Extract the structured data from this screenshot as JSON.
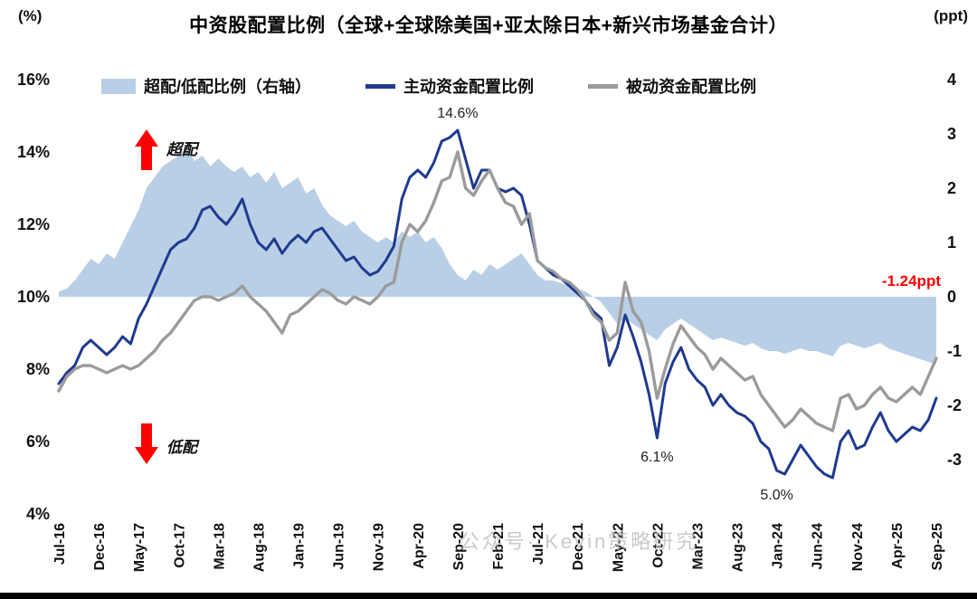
{
  "title": "中资股配置比例（全球+全球除美国+亚太除日本+新兴市场基金合计）",
  "left_axis_unit": "(%)",
  "right_axis_unit": "(ppt)",
  "watermark": "公众号· Kevin策略研究",
  "colors": {
    "red": "#fe0000",
    "area_blue": "#b9cfe6",
    "line_blue": "#1f3a8f",
    "line_gray": "#9b9b9b"
  },
  "legend": [
    {
      "label": "超配/低配比例（右轴）",
      "type": "area",
      "color": "#b9cfe6"
    },
    {
      "label": "主动资金配置比例",
      "type": "line",
      "color": "#1f3a8f"
    },
    {
      "label": "被动资金配置比例",
      "type": "line",
      "color": "#9b9b9b"
    }
  ],
  "annotations": {
    "peak": "14.6%",
    "trough1": "6.1%",
    "trough2": "5.0%",
    "latest": "-1.24ppt",
    "overweight": "超配",
    "underweight": "低配"
  },
  "chart_data": {
    "type": "line+area",
    "n_points": 111,
    "tick_every": 5,
    "x_tick_labels": [
      "Jul-16",
      "Dec-16",
      "May-17",
      "Oct-17",
      "Mar-18",
      "Aug-18",
      "Jan-19",
      "Jun-19",
      "Nov-19",
      "Apr-20",
      "Sep-20",
      "Feb-21",
      "Jul-21",
      "Dec-21",
      "May-22",
      "Oct-22",
      "Mar-23",
      "Aug-23",
      "Jan-24",
      "Jun-24",
      "Nov-24",
      "Apr-25",
      "Sep-25"
    ],
    "left_axis": {
      "min": 4,
      "max": 16,
      "tick_values": [
        16,
        14,
        12,
        10,
        8,
        6,
        4
      ],
      "ticks": [
        "16%",
        "14%",
        "12%",
        "10%",
        "8%",
        "6%",
        "4%"
      ]
    },
    "right_axis": {
      "min": -4,
      "max": 4,
      "tick_values": [
        4,
        3,
        2,
        1,
        0,
        -1,
        -2,
        -3
      ],
      "ticks": [
        "4",
        "3",
        "2",
        "1",
        "0",
        "-1",
        "-2",
        "-3"
      ]
    },
    "series": [
      {
        "name": "超配/低配比例（右轴）",
        "axis": "right",
        "type": "area",
        "color": "#b9cfe6",
        "values": [
          0.1,
          0.15,
          0.3,
          0.5,
          0.7,
          0.6,
          0.8,
          0.7,
          1.0,
          1.3,
          1.6,
          2.0,
          2.2,
          2.4,
          2.5,
          2.6,
          2.75,
          2.5,
          2.6,
          2.4,
          2.55,
          2.4,
          2.3,
          2.4,
          2.2,
          2.3,
          2.1,
          2.3,
          2.0,
          2.1,
          2.2,
          1.9,
          2.0,
          1.7,
          1.5,
          1.4,
          1.3,
          1.4,
          1.2,
          1.1,
          1.0,
          1.1,
          1.0,
          1.2,
          1.1,
          1.2,
          1.0,
          1.1,
          0.9,
          0.6,
          0.4,
          0.3,
          0.5,
          0.4,
          0.6,
          0.5,
          0.6,
          0.7,
          0.8,
          0.6,
          0.4,
          0.3,
          0.3,
          0.25,
          0.2,
          0.15,
          0.1,
          0.0,
          -0.1,
          -0.3,
          -0.5,
          -0.4,
          -0.5,
          -0.6,
          -0.7,
          -0.8,
          -0.6,
          -0.5,
          -0.4,
          -0.5,
          -0.6,
          -0.7,
          -0.8,
          -0.75,
          -0.8,
          -0.85,
          -0.9,
          -0.85,
          -0.95,
          -1.0,
          -1.0,
          -1.05,
          -1.0,
          -0.95,
          -1.0,
          -1.0,
          -1.05,
          -1.1,
          -0.9,
          -0.85,
          -0.9,
          -0.95,
          -0.9,
          -0.85,
          -0.95,
          -1.0,
          -1.05,
          -1.1,
          -1.15,
          -1.2,
          -1.24
        ]
      },
      {
        "name": "主动资金配置比例",
        "axis": "left",
        "type": "line",
        "color": "#1f3a8f",
        "values": [
          7.6,
          7.9,
          8.1,
          8.6,
          8.8,
          8.6,
          8.4,
          8.6,
          8.9,
          8.7,
          9.4,
          9.8,
          10.3,
          10.8,
          11.3,
          11.5,
          11.6,
          11.9,
          12.4,
          12.5,
          12.2,
          12.0,
          12.3,
          12.7,
          12.0,
          11.5,
          11.3,
          11.6,
          11.2,
          11.5,
          11.7,
          11.5,
          11.8,
          11.9,
          11.6,
          11.3,
          11.0,
          11.1,
          10.8,
          10.6,
          10.7,
          11.0,
          11.4,
          12.7,
          13.3,
          13.5,
          13.3,
          13.7,
          14.3,
          14.4,
          14.6,
          13.8,
          13.0,
          13.5,
          13.5,
          13.0,
          12.9,
          13.0,
          12.8,
          12.0,
          11.0,
          10.8,
          10.6,
          10.5,
          10.3,
          10.1,
          9.9,
          9.6,
          9.4,
          8.1,
          8.6,
          9.5,
          8.9,
          8.2,
          7.3,
          6.1,
          7.6,
          8.2,
          8.6,
          8.0,
          7.7,
          7.5,
          7.0,
          7.3,
          7.0,
          6.8,
          6.7,
          6.5,
          6.0,
          5.8,
          5.2,
          5.1,
          5.5,
          5.9,
          5.6,
          5.3,
          5.1,
          5.0,
          6.0,
          6.3,
          5.8,
          5.9,
          6.4,
          6.8,
          6.3,
          6.0,
          6.2,
          6.4,
          6.3,
          6.6,
          7.2
        ]
      },
      {
        "name": "被动资金配置比例",
        "axis": "left",
        "type": "line",
        "color": "#9b9b9b",
        "values": [
          7.4,
          7.8,
          8.0,
          8.1,
          8.1,
          8.0,
          7.9,
          8.0,
          8.1,
          8.0,
          8.1,
          8.3,
          8.5,
          8.8,
          9.0,
          9.3,
          9.6,
          9.9,
          10.0,
          10.0,
          9.9,
          10.0,
          10.1,
          10.3,
          10.0,
          9.8,
          9.6,
          9.3,
          9.0,
          9.5,
          9.6,
          9.8,
          10.0,
          10.2,
          10.1,
          9.9,
          9.8,
          10.0,
          9.9,
          9.8,
          10.0,
          10.3,
          10.4,
          11.5,
          12.0,
          11.8,
          12.1,
          12.6,
          13.2,
          13.3,
          14.0,
          13.0,
          12.8,
          13.2,
          13.5,
          13.0,
          12.6,
          12.5,
          12.0,
          12.3,
          11.0,
          10.8,
          10.7,
          10.5,
          10.4,
          10.2,
          9.9,
          9.5,
          9.3,
          8.8,
          9.0,
          10.4,
          9.6,
          9.3,
          8.5,
          7.2,
          8.0,
          8.7,
          9.2,
          8.9,
          8.6,
          8.4,
          8.0,
          8.3,
          8.1,
          7.9,
          7.7,
          7.8,
          7.3,
          7.0,
          6.7,
          6.4,
          6.6,
          6.9,
          6.7,
          6.5,
          6.4,
          6.3,
          7.2,
          7.3,
          6.9,
          7.0,
          7.3,
          7.5,
          7.2,
          7.1,
          7.3,
          7.5,
          7.3,
          7.8,
          8.3
        ]
      }
    ]
  }
}
